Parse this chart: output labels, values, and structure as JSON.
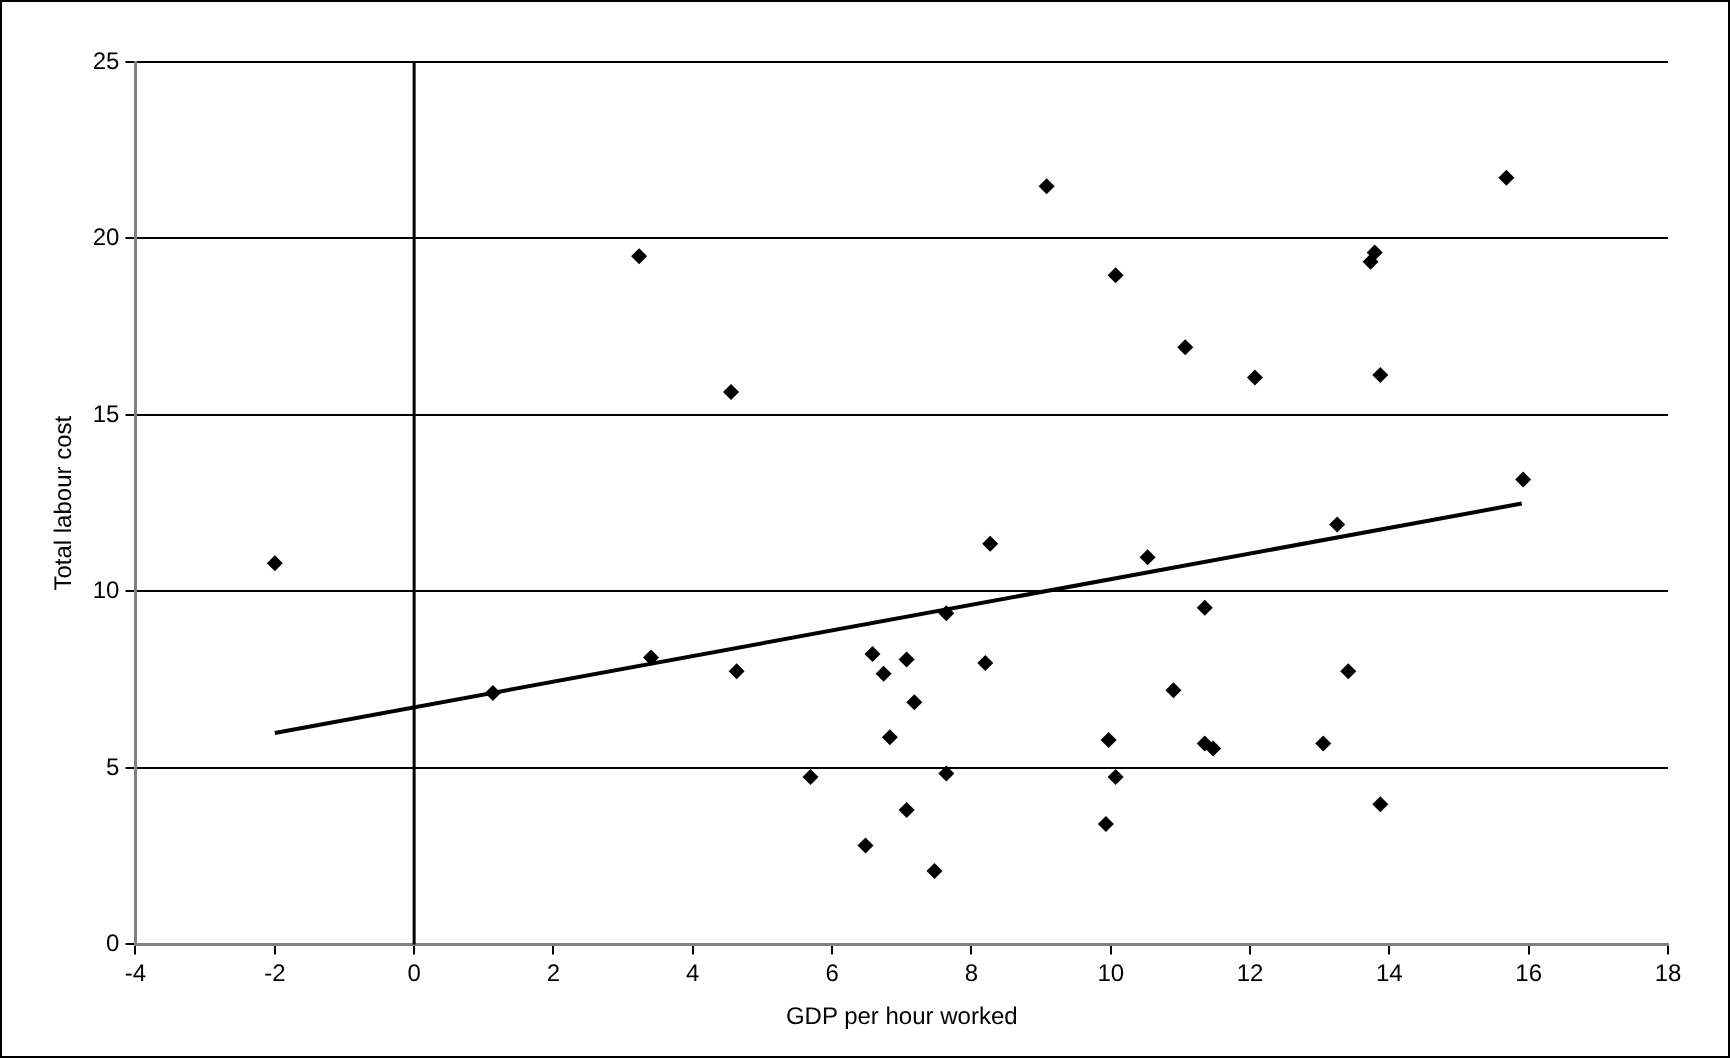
{
  "chart_data": {
    "type": "scatter",
    "xlabel": "GDP per hour worked",
    "ylabel": "Total labour cost",
    "xlim": [
      -4,
      18
    ],
    "xticks": [
      -4,
      -2,
      0,
      2,
      4,
      6,
      8,
      10,
      12,
      14,
      16,
      18
    ],
    "ylim": [
      0,
      25
    ],
    "yticks": [
      0,
      5,
      10,
      15,
      20,
      25
    ],
    "grid": "y",
    "marker": "diamond",
    "legend": false,
    "ref_lines": [
      {
        "axis": "x",
        "value": 0,
        "color": "#000000"
      }
    ],
    "series": [
      {
        "color": "#000000",
        "x": [
          -2,
          1.13,
          3.23,
          4.55,
          3.4,
          4.63,
          5.69,
          9.08,
          15.68,
          10.07,
          13.79,
          13.73,
          11.07,
          12.07,
          13.87,
          15.92,
          13.25,
          8.27,
          10.53,
          7.64,
          11.35,
          6.58,
          7.07,
          8.2,
          6.74,
          13.41,
          10.9,
          7.18,
          6.83,
          9.97,
          11.35,
          11.47,
          13.05,
          7.64,
          10.07,
          7.07,
          13.87,
          6.48,
          9.93,
          7.47
        ],
        "values": [
          10.8,
          7.12,
          19.5,
          15.65,
          8.13,
          7.74,
          4.74,
          21.48,
          21.72,
          18.96,
          19.6,
          19.34,
          16.92,
          16.06,
          16.13,
          13.17,
          11.9,
          11.35,
          10.97,
          9.38,
          9.54,
          8.23,
          8.07,
          7.97,
          7.67,
          7.74,
          7.2,
          6.86,
          5.87,
          5.79,
          5.69,
          5.55,
          5.69,
          4.84,
          4.74,
          3.81,
          3.97,
          2.8,
          3.41,
          2.08
        ]
      },
      {
        "type": "line",
        "color": "#000000",
        "x": [
          -2,
          15.9
        ],
        "values": [
          5.99,
          12.49
        ],
        "marker": "none",
        "line_style": "solid"
      }
    ]
  }
}
